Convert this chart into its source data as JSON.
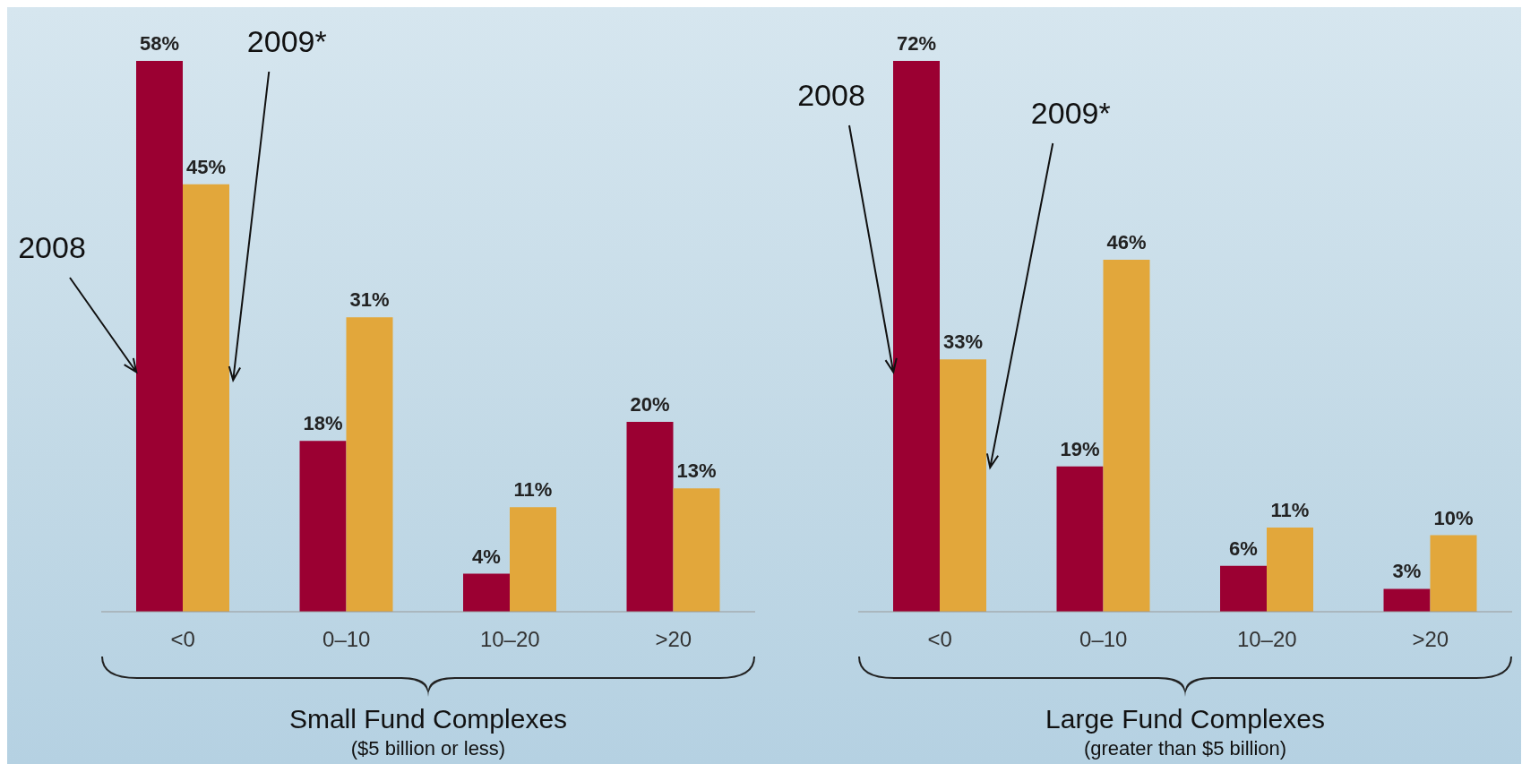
{
  "chart_data": [
    {
      "type": "bar",
      "categories": [
        "<0",
        "0–10",
        "10–20",
        ">20"
      ],
      "xlabel": "Small Fund Complexes",
      "annotations": [
        "($5 billion or less)"
      ],
      "data_labels": true,
      "series": [
        {
          "name": "2008",
          "color": "#9b0032",
          "values": [
            58,
            18,
            4,
            20
          ],
          "value_labels": [
            "58%",
            "18%",
            "4%",
            "20%"
          ]
        },
        {
          "name": "2009*",
          "color": "#e2a73b",
          "values": [
            45,
            31,
            11,
            13
          ],
          "value_labels": [
            "45%",
            "31%",
            "11%",
            "13%"
          ]
        }
      ]
    },
    {
      "type": "bar",
      "categories": [
        "<0",
        "0–10",
        "10–20",
        ">20"
      ],
      "xlabel": "Large Fund Complexes",
      "annotations": [
        "(greater than $5 billion)"
      ],
      "data_labels": true,
      "series": [
        {
          "name": "2008",
          "color": "#9b0032",
          "values": [
            72,
            19,
            6,
            3
          ],
          "value_labels": [
            "72%",
            "19%",
            "6%",
            "3%"
          ]
        },
        {
          "name": "2009*",
          "color": "#e2a73b",
          "values": [
            33,
            46,
            11,
            10
          ],
          "value_labels": [
            "33%",
            "46%",
            "11%",
            "10%"
          ]
        }
      ]
    }
  ]
}
